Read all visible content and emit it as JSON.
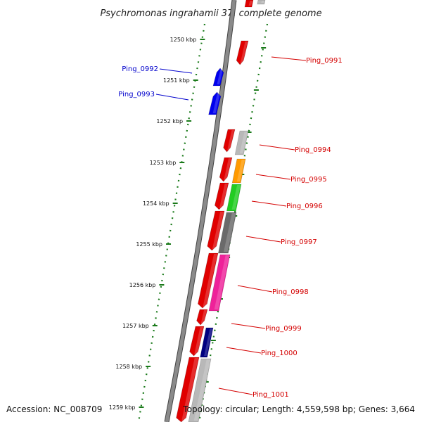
{
  "title": "Psychromonas ingrahamii 37, complete genome",
  "footer": {
    "accession": "Accession: NC_008709",
    "topology": "Topology: circular; Length: 4,559,598 bp; Genes: 3,664"
  },
  "ticks": [
    "1250 kbp",
    "1251 kbp",
    "1252 kbp",
    "1253 kbp",
    "1254 kbp",
    "1255 kbp",
    "1256 kbp",
    "1257 kbp",
    "1258 kbp",
    "1259 kbp"
  ],
  "genes": [
    {
      "label": "Ping_0991",
      "strand": "forward",
      "color": "#d40000"
    },
    {
      "label": "Ping_0992",
      "strand": "reverse",
      "color": "#0000cc"
    },
    {
      "label": "Ping_0993",
      "strand": "reverse",
      "color": "#0000cc"
    },
    {
      "label": "Ping_0994",
      "strand": "forward",
      "color": "#d40000"
    },
    {
      "label": "Ping_0995",
      "strand": "forward",
      "color": "#d40000"
    },
    {
      "label": "Ping_0996",
      "strand": "forward",
      "color": "#d40000"
    },
    {
      "label": "Ping_0997",
      "strand": "forward",
      "color": "#d40000"
    },
    {
      "label": "Ping_0998",
      "strand": "forward",
      "color": "#d40000"
    },
    {
      "label": "Ping_0999",
      "strand": "forward",
      "color": "#d40000"
    },
    {
      "label": "Ping_1000",
      "strand": "forward",
      "color": "#d40000"
    },
    {
      "label": "Ping_1001",
      "strand": "forward",
      "color": "#d40000"
    }
  ],
  "category_colors": {
    "forward": "#e00000",
    "reverse": "#0000ee",
    "grey": "#b8b8b8",
    "orange": "#ff9a00",
    "green": "#22cc22",
    "darkgrey": "#6a6a6a",
    "magenta": "#ee2299",
    "navy": "#000080",
    "backbone": "#8a8a8a",
    "tick": "#1a7a1a"
  }
}
